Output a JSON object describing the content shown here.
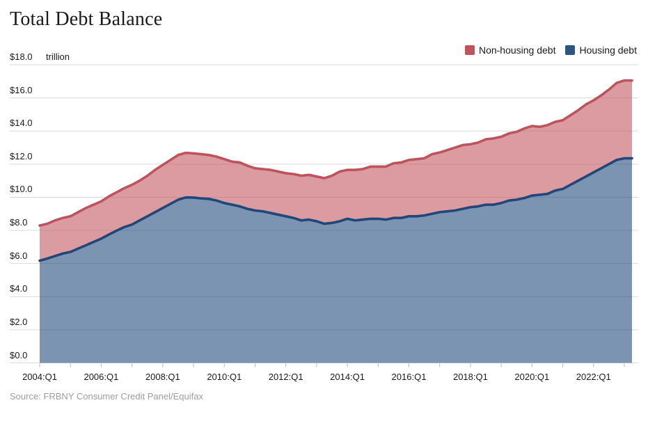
{
  "title": "Total Debt Balance",
  "source_note": "Source: FRBNY Consumer Credit Panel/Equifax",
  "y_axis": {
    "unit": "trillion",
    "tick_values": [
      0,
      2,
      4,
      6,
      8,
      10,
      12,
      14,
      16,
      18
    ],
    "tick_labels": [
      "$0.0",
      "$2.0",
      "$4.0",
      "$6.0",
      "$8.0",
      "$10.0",
      "$12.0",
      "$14.0",
      "$16.0",
      "$18.0"
    ],
    "range": [
      0,
      18
    ]
  },
  "x_axis": {
    "tick_labels": [
      "2004:Q1",
      "2006:Q1",
      "2008:Q1",
      "2010:Q1",
      "2012:Q1",
      "2014:Q1",
      "2016:Q1",
      "2018:Q1",
      "2020:Q1",
      "2022:Q1"
    ],
    "minor_tick_interval": "1 year"
  },
  "colors": {
    "grid": "#d9d9d9",
    "axis_tick": "#b5b5b5",
    "text": "#1a1a1a",
    "source_text": "#989ea3"
  },
  "chart_data": {
    "type": "area",
    "stacked": true,
    "title": "Total Debt Balance",
    "ylabel": "$ trillion",
    "ylim": [
      0,
      18
    ],
    "grid": "horizontal",
    "legend_position": "top-right",
    "x_range": {
      "start": "2004:Q1",
      "end": "2023:Q2",
      "interval": "quarter",
      "points": 78
    },
    "series": [
      {
        "name": "Housing debt",
        "stack_position": "bottom",
        "color": "#2d5685",
        "line_color": "#1f4779",
        "fill": "rgba(34,77,125,0.60)",
        "values": [
          6.17,
          6.3,
          6.45,
          6.6,
          6.7,
          6.9,
          7.1,
          7.3,
          7.5,
          7.75,
          7.98,
          8.2,
          8.35,
          8.6,
          8.85,
          9.1,
          9.35,
          9.6,
          9.85,
          9.99,
          9.98,
          9.93,
          9.9,
          9.8,
          9.65,
          9.55,
          9.45,
          9.3,
          9.2,
          9.15,
          9.05,
          8.95,
          8.85,
          8.75,
          8.6,
          8.65,
          8.55,
          8.4,
          8.45,
          8.55,
          8.7,
          8.6,
          8.65,
          8.7,
          8.7,
          8.65,
          8.75,
          8.75,
          8.85,
          8.85,
          8.9,
          9.0,
          9.1,
          9.15,
          9.2,
          9.3,
          9.4,
          9.45,
          9.55,
          9.55,
          9.65,
          9.8,
          9.85,
          9.95,
          10.1,
          10.15,
          10.2,
          10.4,
          10.5,
          10.75,
          11.0,
          11.25,
          11.5,
          11.75,
          12.0,
          12.25,
          12.35,
          12.35
        ]
      },
      {
        "name": "Non-housing debt",
        "stack_position": "top",
        "color": "#c0545c",
        "line_color": "#bf535d",
        "fill": "rgba(192,83,93,0.58)",
        "values": [
          2.12,
          2.1,
          2.15,
          2.15,
          2.15,
          2.2,
          2.25,
          2.25,
          2.25,
          2.3,
          2.32,
          2.35,
          2.4,
          2.4,
          2.45,
          2.55,
          2.6,
          2.65,
          2.7,
          2.69,
          2.67,
          2.67,
          2.65,
          2.65,
          2.65,
          2.6,
          2.65,
          2.6,
          2.55,
          2.55,
          2.6,
          2.6,
          2.6,
          2.65,
          2.7,
          2.7,
          2.7,
          2.75,
          2.85,
          3.0,
          2.95,
          3.05,
          3.05,
          3.15,
          3.15,
          3.2,
          3.3,
          3.35,
          3.4,
          3.45,
          3.45,
          3.6,
          3.6,
          3.7,
          3.8,
          3.85,
          3.8,
          3.85,
          3.95,
          4.0,
          4.0,
          4.05,
          4.1,
          4.2,
          4.2,
          4.1,
          4.15,
          4.15,
          4.15,
          4.2,
          4.25,
          4.35,
          4.35,
          4.4,
          4.5,
          4.65,
          4.7,
          4.7
        ]
      }
    ]
  }
}
